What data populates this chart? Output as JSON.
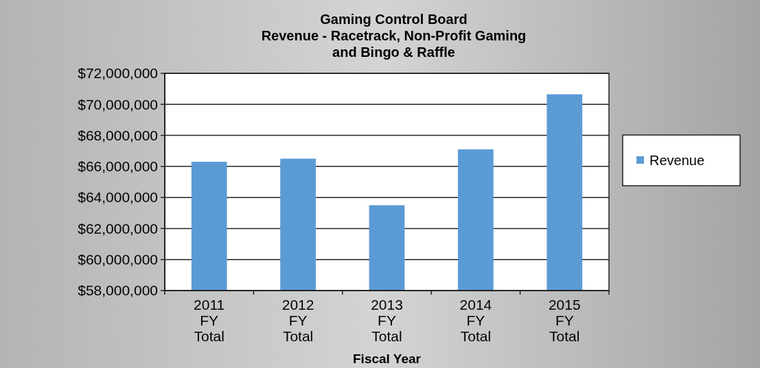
{
  "chart_data": {
    "type": "bar",
    "title": "Gaming Control Board\nRevenue - Racetrack, Non-Profit Gaming\nand Bingo & Raffle",
    "xlabel": "Fiscal Year",
    "categories": [
      "2011 FY Total",
      "2012 FY Total",
      "2013 FY Total",
      "2014 FY Total",
      "2015 FY Total"
    ],
    "series": [
      {
        "name": "Revenue",
        "color": "#5b9bd5",
        "values": [
          66300000,
          66500000,
          63500000,
          67100000,
          70650000
        ]
      }
    ],
    "ylim": [
      58000000,
      72000000
    ],
    "yticks": [
      {
        "value": 58000000,
        "label": "$58,000,000"
      },
      {
        "value": 60000000,
        "label": "$60,000,000"
      },
      {
        "value": 62000000,
        "label": "$62,000,000"
      },
      {
        "value": 64000000,
        "label": "$64,000,000"
      },
      {
        "value": 66000000,
        "label": "$66,000,000"
      },
      {
        "value": 68000000,
        "label": "$68,000,000"
      },
      {
        "value": 70000000,
        "label": "$70,000,000"
      },
      {
        "value": 72000000,
        "label": "$72,000,000"
      }
    ],
    "grid": "y",
    "legend": "right"
  }
}
